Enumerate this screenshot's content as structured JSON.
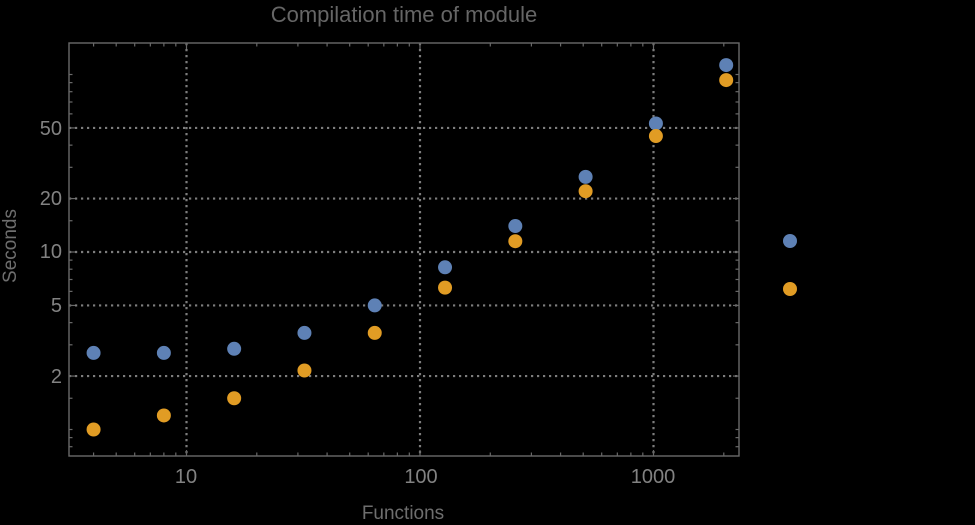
{
  "chart_title": "Compilation time of module",
  "axes": {
    "x_label": "Functions",
    "y_label": "Seconds",
    "x_tick_labels": [
      "10",
      "100",
      "1000"
    ],
    "y_tick_labels": [
      "2",
      "5",
      "10",
      "20",
      "50"
    ]
  },
  "colors": {
    "background": "#000000",
    "frame": "#696969",
    "grid": "#7d7d7d",
    "title": "#666666",
    "axis_label": "#6e6e6e",
    "tick_label": "#828282",
    "series1": "#5E81B5",
    "series2": "#E19C24"
  },
  "chart_data": {
    "type": "scatter",
    "title": "Compilation time of module",
    "xlabel": "Functions",
    "ylabel": "Seconds",
    "x_scale": "log",
    "y_scale": "log",
    "xlim": [
      3.1,
      2320
    ],
    "ylim": [
      0.7,
      148
    ],
    "grid": "dotted lines at labeled major ticks only",
    "legend": {
      "position": "outside-right",
      "labels_visible": false
    },
    "x": [
      4,
      8,
      16,
      32,
      64,
      128,
      256,
      512,
      1024,
      2048
    ],
    "series": [
      {
        "name": "series-1-blue",
        "color": "#5E81B5",
        "values": [
          2.7,
          2.7,
          2.85,
          3.5,
          5.0,
          8.2,
          14.0,
          26.5,
          53.0,
          113.0
        ]
      },
      {
        "name": "series-2-orange",
        "color": "#E19C24",
        "values": [
          1.0,
          1.2,
          1.5,
          2.15,
          3.5,
          6.3,
          11.5,
          22.0,
          45.0,
          93.0
        ]
      }
    ],
    "x_major_ticks": [
      10,
      100,
      1000
    ],
    "y_major_ticks": [
      2,
      5,
      10,
      20,
      50
    ],
    "x_minor_ticks": [
      4,
      5,
      6,
      7,
      8,
      9,
      20,
      30,
      40,
      50,
      60,
      70,
      80,
      90,
      200,
      300,
      400,
      500,
      600,
      700,
      800,
      900,
      2000
    ],
    "y_minor_ticks": [
      0.8,
      0.9,
      1,
      1.5,
      3,
      4,
      6,
      7,
      8,
      9,
      15,
      30,
      40,
      60,
      70,
      80,
      90,
      100
    ]
  }
}
